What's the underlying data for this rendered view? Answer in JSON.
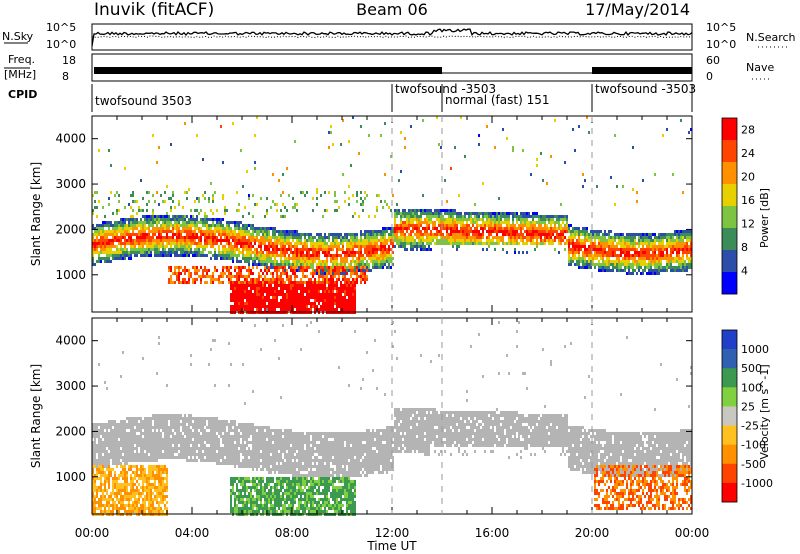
{
  "header": {
    "station": "Inuvik (fitACF)",
    "beam": "Beam 06",
    "date": "17/May/2014"
  },
  "strip": {
    "nsky_label": "N.Sky",
    "nsky_ticks": [
      "10^5",
      "10^0"
    ],
    "nsearch_label": "N.Search",
    "nsearch_ticks": [
      "10^5",
      "10^0"
    ],
    "freq_label": "Freq.",
    "freq_unit": "[MHz]",
    "freq_ticks": [
      "18",
      "8"
    ],
    "nave_label": "Nave",
    "nave_ticks": [
      "60",
      "0"
    ],
    "cpid_label": "CPID",
    "cpid_segments": [
      {
        "label": "twofsound 3503",
        "start_h": 0,
        "end_h": 12
      },
      {
        "label": "twofsound -3503",
        "start_h": 12,
        "end_h": 14
      },
      {
        "label": "normal (fast) 151",
        "start_h": 14,
        "end_h": 20
      },
      {
        "label": "twofsound -3503",
        "start_h": 20,
        "end_h": 24
      }
    ]
  },
  "colors": {
    "power": [
      "#0000ff",
      "#2c4ea8",
      "#3c8c5a",
      "#7ec443",
      "#e8d000",
      "#ff9000",
      "#ff4500",
      "#ff0000"
    ],
    "velocity": [
      "#ff0000",
      "#ff4400",
      "#ff9100",
      "#ffc020",
      "#c8c8c0",
      "#80d040",
      "#3c9a50",
      "#3060b0",
      "#2040c8"
    ],
    "ground_scatter": "#b4b4b4"
  },
  "chart_data": [
    {
      "type": "heatmap",
      "name": "power",
      "xlabel": "Time UT",
      "ylabel": "Slant Range [km]",
      "xlim": [
        0,
        24
      ],
      "ylim": [
        180,
        4500
      ],
      "x_ticks": [
        "00:00",
        "04:00",
        "08:00",
        "12:00",
        "16:00",
        "20:00",
        "00:00"
      ],
      "y_ticks": [
        1000,
        2000,
        3000,
        4000
      ],
      "colorbar_label": "Power [dB]",
      "colorbar_ticks": [
        4,
        8,
        12,
        16,
        20,
        24,
        28
      ],
      "colorbar_range": [
        0,
        30
      ]
    },
    {
      "type": "heatmap",
      "name": "velocity",
      "xlabel": "Time UT",
      "ylabel": "Slant Range [km]",
      "xlim": [
        0,
        24
      ],
      "ylim": [
        180,
        4500
      ],
      "x_ticks": [
        "00:00",
        "04:00",
        "08:00",
        "12:00",
        "16:00",
        "20:00",
        "00:00"
      ],
      "y_ticks": [
        1000,
        2000,
        3000,
        4000
      ],
      "colorbar_label": "Velocity [m s^-1]",
      "colorbar_ticks": [
        1000,
        500,
        100,
        25,
        -25,
        -100,
        -500,
        -1000
      ]
    }
  ]
}
